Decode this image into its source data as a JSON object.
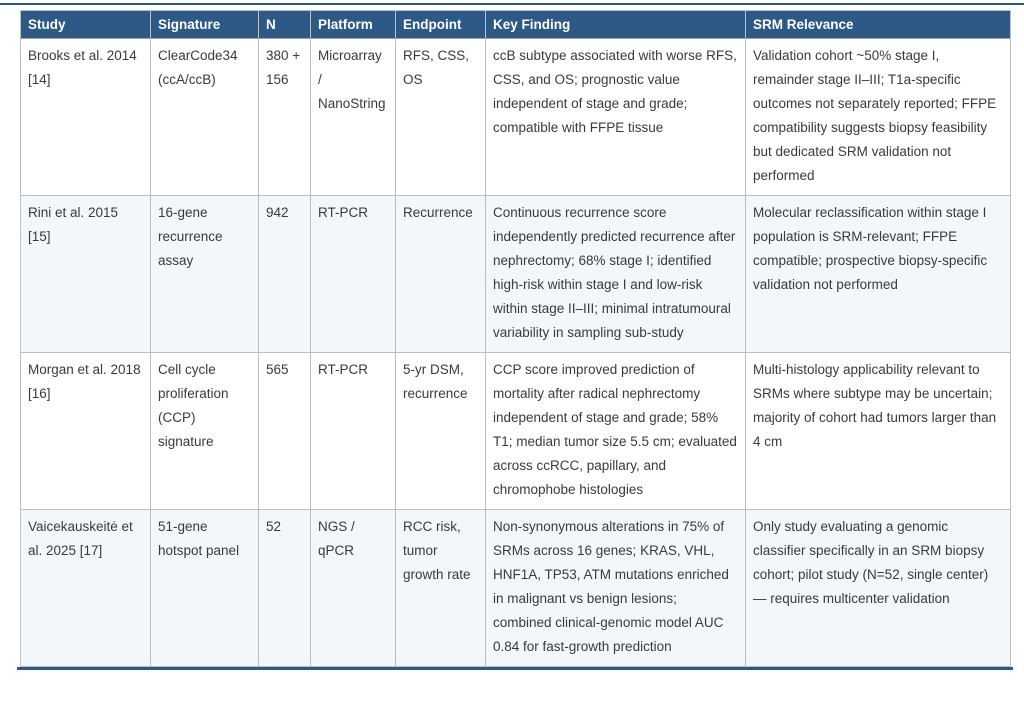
{
  "colors": {
    "header_bg": "#2d5986",
    "header_text": "#ffffff",
    "row_alt_bg": "#f2f7fb",
    "cell_border": "#bdbdbd",
    "accent_rule": "#2d5986",
    "body_text": "#3a3a3a"
  },
  "table": {
    "columns": [
      "Study",
      "Signature",
      "N",
      "Platform",
      "Endpoint",
      "Key Finding",
      "SRM Relevance"
    ],
    "rows": [
      {
        "cells": [
          "Brooks et al. 2014 [14]",
          "ClearCode34 (ccA/ccB)",
          "380 + 156",
          "Microarray / NanoString",
          "RFS, CSS, OS",
          "ccB subtype associated with worse RFS, CSS, and OS; prognostic value independent of stage and grade; compatible with FFPE tissue",
          "Validation cohort ~50% stage I, remainder stage II–III; T1a-specific outcomes not separately reported; FFPE compatibility suggests biopsy feasibility but dedicated SRM validation not performed"
        ]
      },
      {
        "cells": [
          "Rini et al. 2015 [15]",
          "16-gene recurrence assay",
          "942",
          "RT-PCR",
          "Recurrence",
          "Continuous recurrence score independently predicted recurrence after nephrectomy; 68% stage I; identified high-risk within stage I and low-risk within stage II–III; minimal intratumoural variability in sampling sub-study",
          "Molecular reclassification within stage I population is SRM-relevant; FFPE compatible; prospective biopsy-specific validation not performed"
        ]
      },
      {
        "cells": [
          "Morgan et al. 2018 [16]",
          "Cell cycle proliferation (CCP) signature",
          "565",
          "RT-PCR",
          "5-yr DSM, recurrence",
          "CCP score improved prediction of mortality after radical nephrectomy independent of stage and grade; 58% T1; median tumor size 5.5 cm; evaluated across ccRCC, papillary, and chromophobe histologies",
          "Multi-histology applicability relevant to SRMs where subtype may be uncertain; majority of cohort had tumors larger than 4 cm"
        ]
      },
      {
        "cells": [
          "Vaicekauskeitė et al. 2025 [17]",
          "51-gene hotspot panel",
          "52",
          "NGS / qPCR",
          "RCC risk, tumor growth rate",
          "Non-synonymous alterations in 75% of SRMs across 16 genes; KRAS, VHL, HNF1A, TP53, ATM mutations enriched in malignant vs benign lesions; combined clinical-genomic model AUC 0.84 for fast-growth prediction",
          "Only study evaluating a genomic classifier specifically in an SRM biopsy cohort; pilot study (N=52, single center) — requires multicenter validation"
        ]
      }
    ]
  }
}
